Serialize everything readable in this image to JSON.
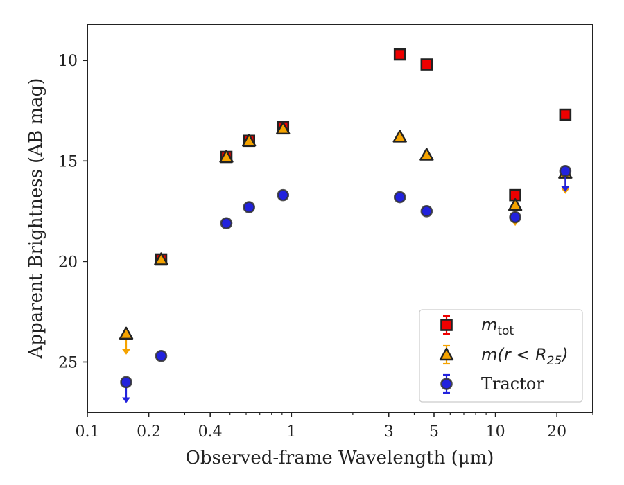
{
  "chart_data": {
    "type": "scatter",
    "xlabel": "Observed-frame Wavelength (μm)",
    "ylabel": "Apparent Brightness (AB mag)",
    "x_scale": "log",
    "xlim": [
      0.1,
      30
    ],
    "ylim": [
      27.5,
      8.2
    ],
    "y_inverted": true,
    "x_ticks": [
      {
        "value": 0.1,
        "label": "0.1"
      },
      {
        "value": 0.2,
        "label": "0.2"
      },
      {
        "value": 0.4,
        "label": "0.4"
      },
      {
        "value": 1,
        "label": "1"
      },
      {
        "value": 3,
        "label": "3"
      },
      {
        "value": 5,
        "label": "5"
      },
      {
        "value": 10,
        "label": "10"
      },
      {
        "value": 20,
        "label": "20"
      }
    ],
    "y_ticks": [
      {
        "value": 10,
        "label": "10"
      },
      {
        "value": 15,
        "label": "15"
      },
      {
        "value": 20,
        "label": "20"
      },
      {
        "value": 25,
        "label": "25"
      }
    ],
    "grid": false,
    "legend_position": "bottom-right",
    "series": [
      {
        "name": "m_tot",
        "legend_main": "m",
        "legend_sub": "tot",
        "marker": "square",
        "color": "#ee0000",
        "edge": "#222222",
        "points": [
          {
            "x": 0.23,
            "y": 19.9
          },
          {
            "x": 0.48,
            "y": 14.8
          },
          {
            "x": 0.62,
            "y": 14.0
          },
          {
            "x": 0.91,
            "y": 13.3
          },
          {
            "x": 3.4,
            "y": 9.7
          },
          {
            "x": 4.6,
            "y": 10.2
          },
          {
            "x": 12.5,
            "y": 16.7
          },
          {
            "x": 22.0,
            "y": 12.7
          }
        ]
      },
      {
        "name": "m(r<R25)",
        "legend_main": "m(r < R",
        "legend_sub": "25",
        "legend_tail": ")",
        "marker": "triangle",
        "color": "#f5a300",
        "edge": "#222222",
        "points": [
          {
            "x": 0.155,
            "y": 23.6,
            "upper_limit": true
          },
          {
            "x": 0.23,
            "y": 19.9
          },
          {
            "x": 0.48,
            "y": 14.8
          },
          {
            "x": 0.62,
            "y": 14.0
          },
          {
            "x": 0.91,
            "y": 13.4
          },
          {
            "x": 3.4,
            "y": 13.8
          },
          {
            "x": 4.6,
            "y": 14.7
          },
          {
            "x": 12.5,
            "y": 17.2,
            "upper_limit": true
          },
          {
            "x": 22.0,
            "y": 15.6,
            "upper_limit": true
          }
        ]
      },
      {
        "name": "Tractor",
        "legend_main": "Tractor",
        "marker": "circle",
        "color": "#2222dd",
        "edge": "#333333",
        "points": [
          {
            "x": 0.155,
            "y": 26.0,
            "upper_limit": true
          },
          {
            "x": 0.23,
            "y": 24.7
          },
          {
            "x": 0.48,
            "y": 18.1
          },
          {
            "x": 0.62,
            "y": 17.3
          },
          {
            "x": 0.91,
            "y": 16.7
          },
          {
            "x": 3.4,
            "y": 16.8
          },
          {
            "x": 4.6,
            "y": 17.5
          },
          {
            "x": 12.5,
            "y": 17.8
          },
          {
            "x": 22.0,
            "y": 15.5,
            "upper_limit": true
          }
        ]
      }
    ]
  }
}
